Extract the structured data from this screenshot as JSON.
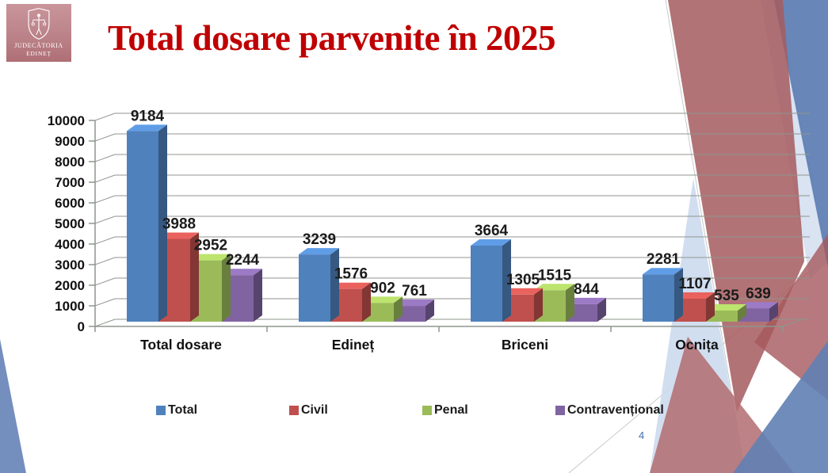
{
  "slide": {
    "title": "Total dosare parvenite în 2025",
    "title_color": "#c00000",
    "page_number": "4",
    "page_number_color": "#3f6db5",
    "logo": {
      "line1": "JUDECĂTORIA",
      "line2": "EDINEȚ"
    }
  },
  "chart_data": {
    "type": "bar",
    "style": "3d-clustered",
    "title": "",
    "xlabel": "",
    "ylabel": "",
    "categories": [
      "Total dosare",
      "Edineț",
      "Briceni",
      "Ocnița"
    ],
    "series": [
      {
        "name": "Total",
        "color": "#4f81bd",
        "values": [
          9184,
          3239,
          3664,
          2281
        ]
      },
      {
        "name": "Civil",
        "color": "#c0504d",
        "values": [
          3988,
          1576,
          1305,
          1107
        ]
      },
      {
        "name": "Penal",
        "color": "#9bbb59",
        "values": [
          2952,
          902,
          1515,
          535
        ]
      },
      {
        "name": "Contravențional",
        "color": "#8064a2",
        "values": [
          2244,
          761,
          844,
          639
        ]
      }
    ],
    "ylim": [
      0,
      10000
    ],
    "ytick_step": 1000,
    "grid": true,
    "gridline_color": "#8f958d",
    "value_labels": true,
    "value_label_color": "#1b1b1b",
    "legend_position": "bottom"
  }
}
